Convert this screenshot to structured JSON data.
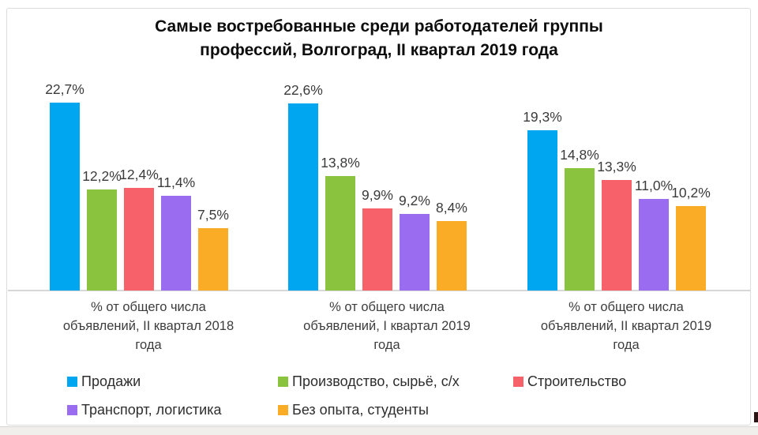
{
  "chart_data": {
    "type": "bar",
    "title": "Самые востребованные среди работодателей группы\nпрофессий, Волгоград, II квартал 2019 года",
    "categories": [
      "% от общего числа\nобъявлений, II квартал 2018\nгода",
      "% от общего числа\nобъявлений, I квартал 2019\nгода",
      "% от общего числа\nобъявлений, II квартал 2019\nгода"
    ],
    "series": [
      {
        "key": "sales",
        "name": "Продажи",
        "color": "#00A7F0",
        "values": [
          22.7,
          22.6,
          19.3
        ],
        "labels": [
          "22,7%",
          "22,6%",
          "19,3%"
        ]
      },
      {
        "key": "production-raw-agro",
        "name": "Производство, сырьё, с/х",
        "color": "#8AC43F",
        "values": [
          12.2,
          13.8,
          14.8
        ],
        "labels": [
          "12,2%",
          "13,8%",
          "14,8%"
        ]
      },
      {
        "key": "construction",
        "name": "Строительство",
        "color": "#F7626A",
        "values": [
          12.4,
          9.9,
          13.3
        ],
        "labels": [
          "12,4%",
          "9,9%",
          "13,3%"
        ]
      },
      {
        "key": "transport-logistics",
        "name": "Транспорт, логистика",
        "color": "#9A6CEF",
        "values": [
          11.4,
          9.2,
          11.0
        ],
        "labels": [
          "11,4%",
          "9,2%",
          "11,0%"
        ]
      },
      {
        "key": "no-experience-students",
        "name": "Без опыта, студенты",
        "color": "#FAAC27",
        "values": [
          7.5,
          8.4,
          10.2
        ],
        "labels": [
          "7,5%",
          "8,4%",
          "10,2%"
        ]
      }
    ],
    "ylim": [
      0,
      25
    ],
    "grid": false,
    "legend_position": "bottom",
    "value_labels_shown": true
  }
}
